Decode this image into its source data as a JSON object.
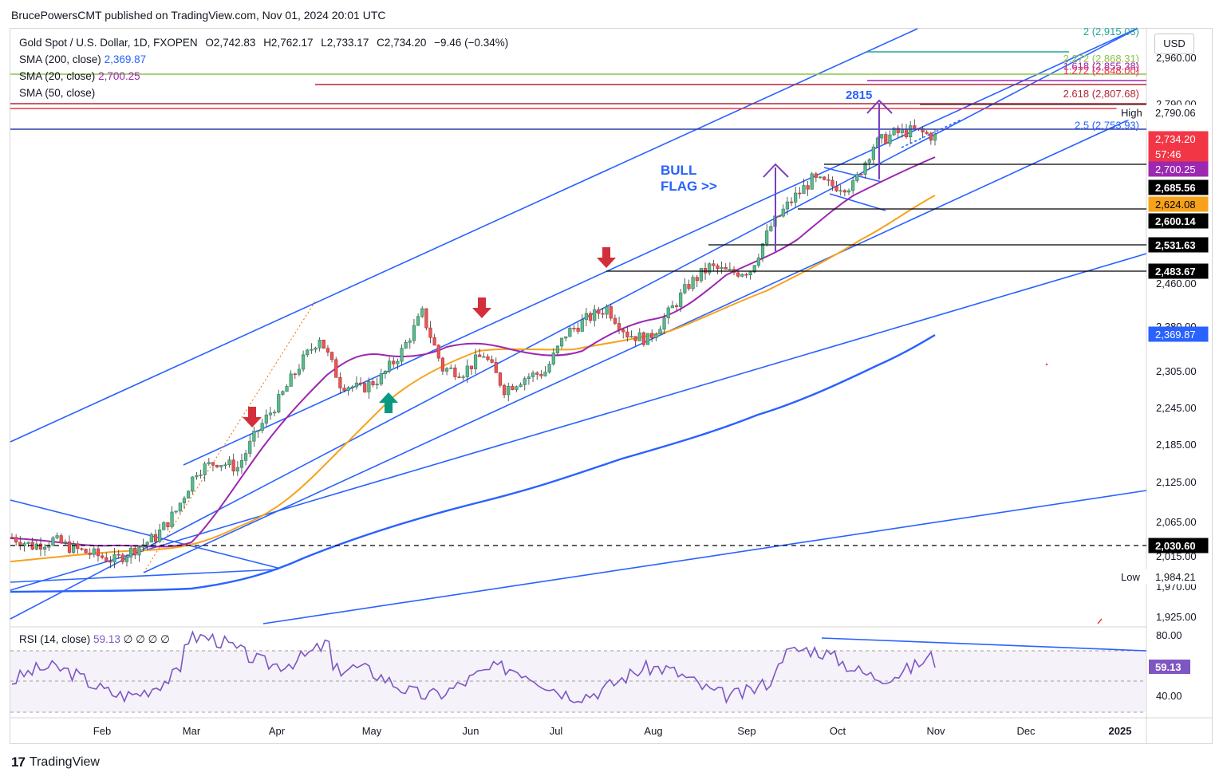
{
  "header": {
    "publisher_line": "BrucePowersCMT published on TradingView.com, Nov 01, 2024 20:01 UTC"
  },
  "legend": {
    "symbol": "Gold Spot / U.S. Dollar, 1D, FXOPEN",
    "open": "O2,742.83",
    "high": "H2,762.17",
    "low": "L2,733.17",
    "close": "C2,734.20",
    "change": "−9.46 (−0.34%)",
    "sma200_label": "SMA (200, close)",
    "sma200_value": "2,369.87",
    "sma20_label": "SMA (20, close)",
    "sma20_value": "2,700.25",
    "sma50_label": "SMA (50, close)"
  },
  "rsi_legend": {
    "label": "RSI (14, close)",
    "value": "59.13",
    "extras": "∅ ∅ ∅ ∅"
  },
  "currency": "USD",
  "annotations": {
    "bull_flag_line1": "BULL",
    "bull_flag_line2": "FLAG >>",
    "target": "2815"
  },
  "fib_labels": [
    {
      "text": "2 (2,915.03)",
      "price": 2915.03,
      "color": "#26a69a"
    },
    {
      "text": "2.272 (2,868.31)",
      "price": 2868.31,
      "color": "#8bc34a"
    },
    {
      "text": "1.618 (2,855.38)",
      "price": 2855.38,
      "color": "#9c27b0"
    },
    {
      "text": "1.272 (2,848.00)",
      "price": 2848.0,
      "color": "#f23645"
    },
    {
      "text": "2.618 (2,807.68)",
      "price": 2807.68,
      "color": "#b22833"
    },
    {
      "text": "2.5 (2,753.93)",
      "price": 2753.93,
      "color": "#2962ff"
    }
  ],
  "price_axis_ticks": [
    "2,960.00",
    "2,790.00",
    "2,460.00",
    "2,380.00",
    "2,305.00",
    "2,245.00",
    "2,185.00",
    "2,125.00",
    "2,065.00",
    "2,015.00",
    "1,970.00",
    "1,925.00"
  ],
  "price_badges": [
    {
      "text": "High",
      "price": 2790.06,
      "bg": "#ffffff",
      "fg": "#131722",
      "label_box": true
    },
    {
      "text": "2,790.06",
      "price": 2790.06,
      "bg": "#ffffff",
      "fg": "#131722"
    },
    {
      "text": "2,734.20",
      "price": 2734.2,
      "bg": "#f23645",
      "fg": "#ffffff"
    },
    {
      "text": "57:46",
      "price": 2715.0,
      "bg": "#f23645",
      "fg": "#ffffff"
    },
    {
      "text": "2,700.25",
      "price": 2700.25,
      "bg": "#9c27b0",
      "fg": "#ffffff"
    },
    {
      "text": "2,685.56",
      "price": 2685.56,
      "bg": "#000000",
      "fg": "#ffffff"
    },
    {
      "text": "2,624.08",
      "price": 2624.08,
      "bg": "#f7a21b",
      "fg": "#000000"
    },
    {
      "text": "2,600.14",
      "price": 2600.14,
      "bg": "#000000",
      "fg": "#ffffff"
    },
    {
      "text": "2,531.63",
      "price": 2531.63,
      "bg": "#000000",
      "fg": "#ffffff"
    },
    {
      "text": "2,483.67",
      "price": 2483.67,
      "bg": "#000000",
      "fg": "#ffffff"
    },
    {
      "text": "2,369.87",
      "price": 2369.87,
      "bg": "#2962ff",
      "fg": "#ffffff"
    },
    {
      "text": "2,030.60",
      "price": 2030.6,
      "bg": "#000000",
      "fg": "#ffffff"
    },
    {
      "text": "Low",
      "price": 1984.21,
      "bg": "#ffffff",
      "fg": "#131722",
      "label_box": true
    },
    {
      "text": "1,984.21",
      "price": 1984.21,
      "bg": "#ffffff",
      "fg": "#131722"
    }
  ],
  "rsi_axis": {
    "ticks": [
      "80.00",
      "40.00"
    ],
    "current_badge": "59.13",
    "current": 59.13
  },
  "time_axis": [
    "Feb",
    "Mar",
    "Apr",
    "May",
    "Jun",
    "Jul",
    "Aug",
    "Sep",
    "Oct",
    "Nov",
    "Dec",
    "2025"
  ],
  "chart_data": {
    "type": "candlestick",
    "title": "Gold Spot / U.S. Dollar, 1D, FXOPEN",
    "price_range": [
      1900,
      2990
    ],
    "levels": [
      2790.06,
      2685.56,
      2600.14,
      2531.63,
      2483.67,
      2030.6
    ],
    "weekly_closes": [
      2045,
      2030,
      2040,
      2025,
      2015,
      2005,
      2025,
      2045,
      2090,
      2160,
      2175,
      2165,
      2230,
      2280,
      2340,
      2390,
      2310,
      2300,
      2320,
      2365,
      2430,
      2335,
      2330,
      2360,
      2300,
      2320,
      2330,
      2395,
      2420,
      2440,
      2395,
      2385,
      2430,
      2480,
      2510,
      2500,
      2505,
      2580,
      2625,
      2660,
      2650,
      2650,
      2720,
      2740,
      2745,
      2734
    ],
    "sma": [
      {
        "name": "SMA (20, close)",
        "value": 2700.25,
        "color": "#9c27b0"
      },
      {
        "name": "SMA (50, close)",
        "value": 2624.08,
        "color": "#f7a21b"
      },
      {
        "name": "SMA (200, close)",
        "value": 2369.87,
        "color": "#2962ff"
      }
    ],
    "rsi": {
      "name": "RSI (14, close)",
      "current": 59.13,
      "bands": [
        70,
        30
      ],
      "range": [
        20,
        90
      ]
    },
    "grid": false
  },
  "footer": {
    "brand": "TradingView"
  }
}
